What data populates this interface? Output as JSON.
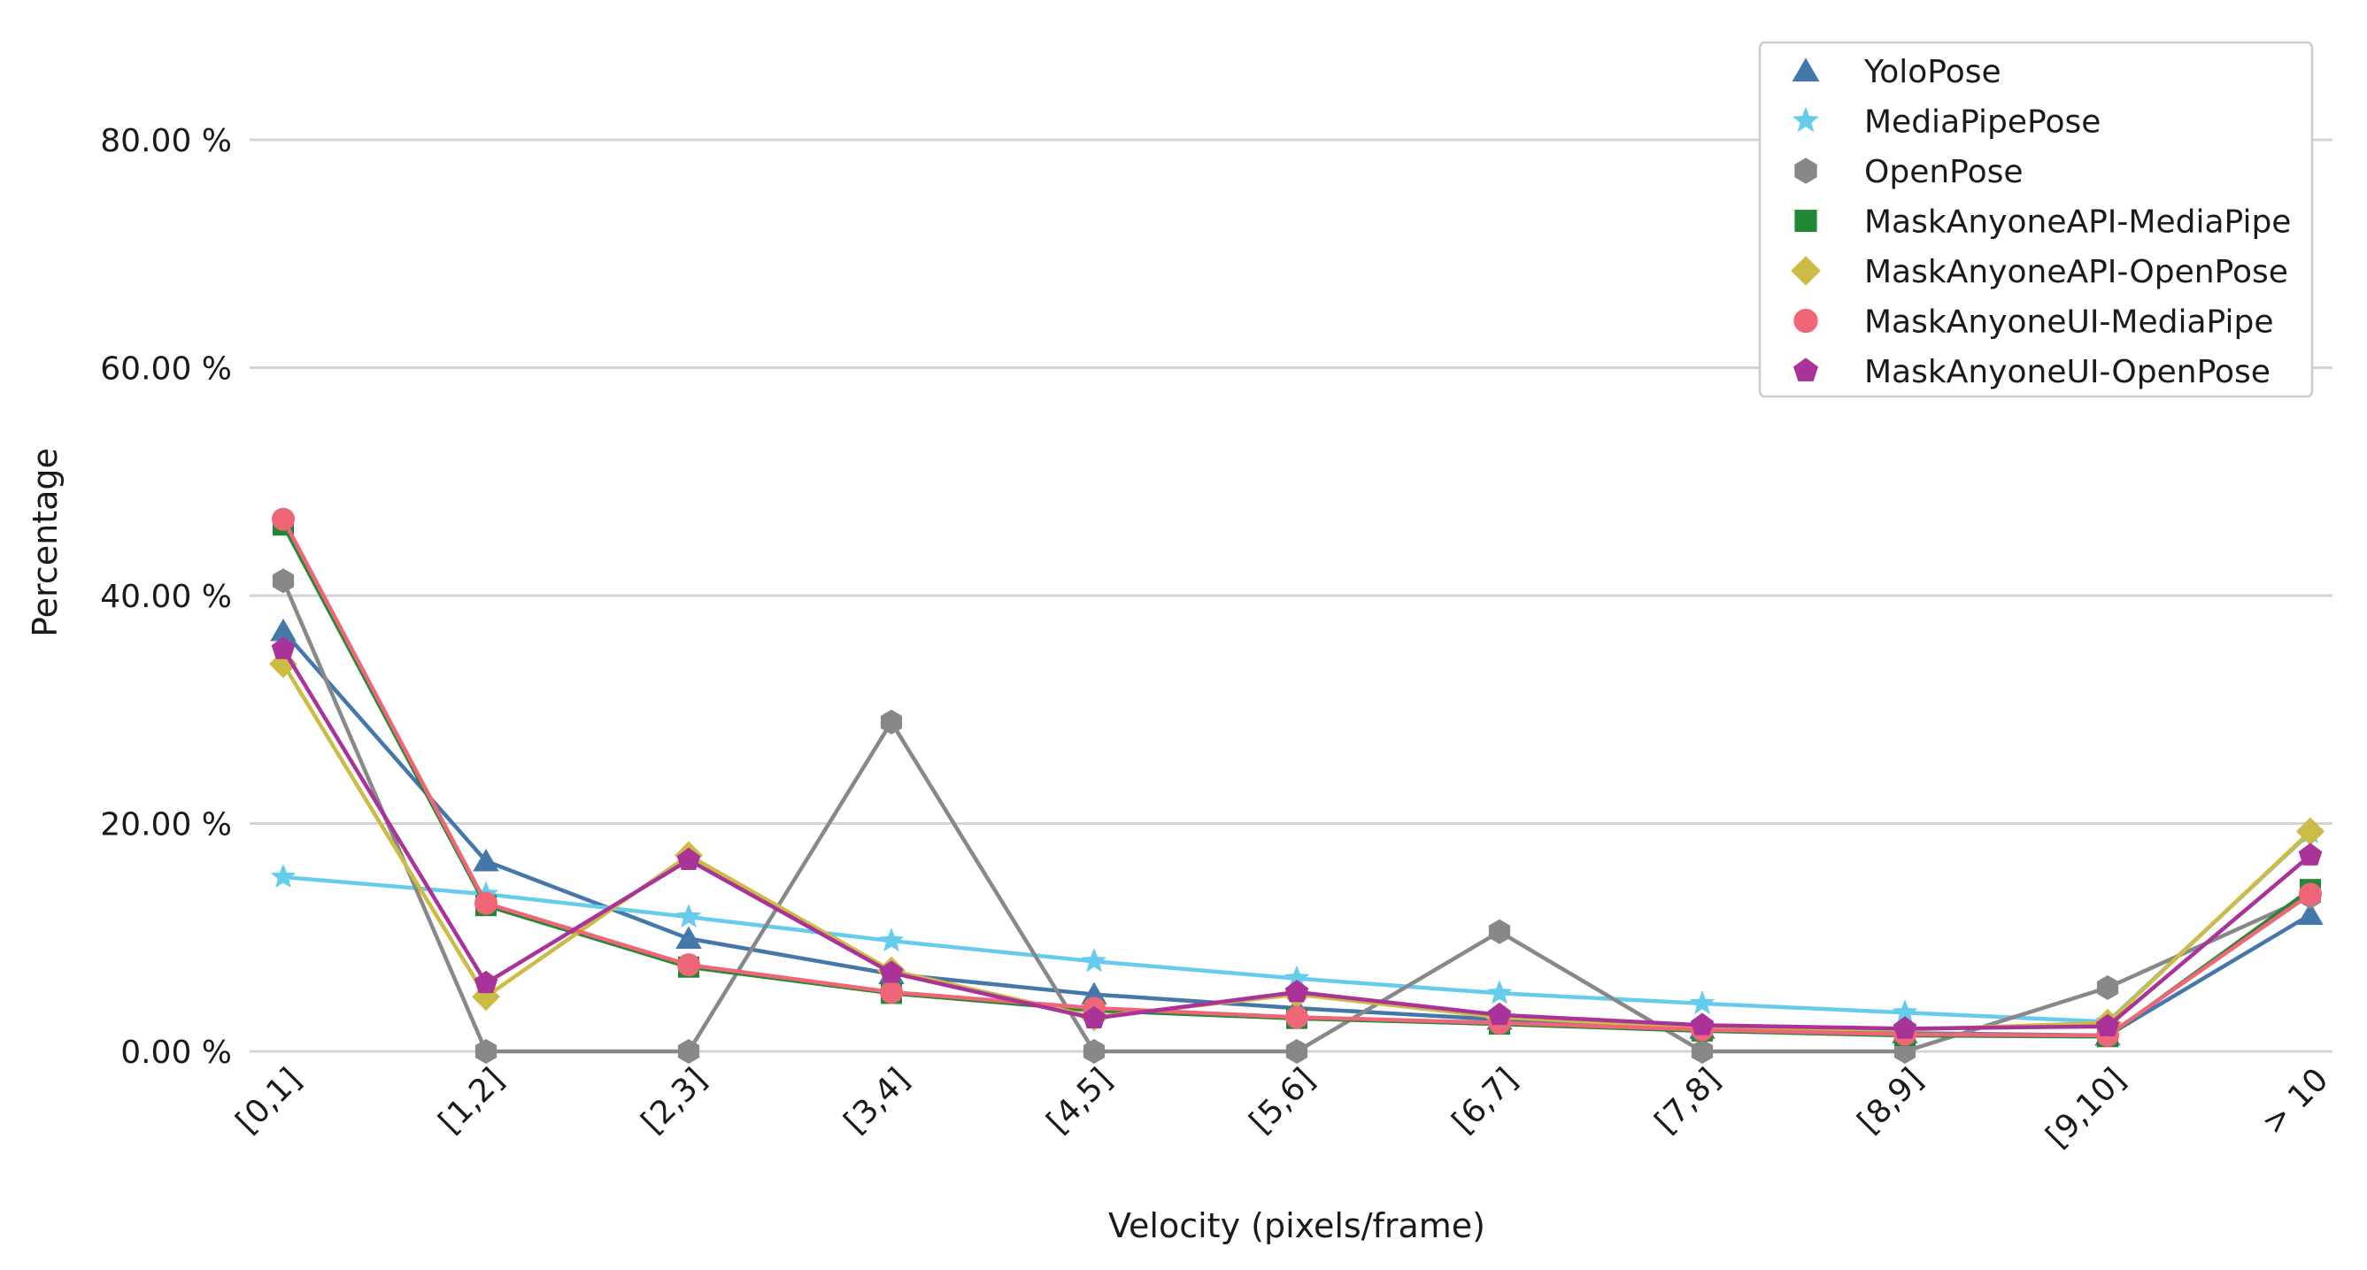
{
  "chart_data": {
    "type": "line",
    "xlabel": "Velocity (pixels/frame)",
    "ylabel": "Percentage",
    "categories": [
      "[0,1]",
      "[1,2]",
      "[2,3]",
      "[3,4]",
      "[4,5]",
      "[5,6]",
      "[6,7]",
      "[7,8]",
      "[8,9]",
      "[9,10]",
      "> 10"
    ],
    "ylim": [
      0,
      89
    ],
    "yticks": [
      0,
      20,
      40,
      60,
      80
    ],
    "ytick_labels": [
      "0.00 %",
      "20.00 %",
      "40.00 %",
      "60.00 %",
      "80.00 %"
    ],
    "grid": "horizontal",
    "legend_position": "top-right",
    "series": [
      {
        "name": "YoloPose",
        "color": "#4477aa",
        "marker": "triangle",
        "values": [
          36.9,
          16.7,
          9.9,
          6.8,
          5.0,
          3.8,
          2.8,
          2.0,
          1.6,
          1.4,
          12.0
        ]
      },
      {
        "name": "MediaPipePose",
        "color": "#66ccee",
        "marker": "star",
        "values": [
          15.3,
          13.8,
          11.8,
          9.7,
          7.9,
          6.4,
          5.1,
          4.2,
          3.4,
          2.6,
          19.2
        ]
      },
      {
        "name": "OpenPose",
        "color": "#888888",
        "marker": "hexagon",
        "values": [
          41.3,
          0.0,
          0.0,
          28.9,
          0.0,
          0.0,
          10.5,
          0.0,
          0.0,
          5.6,
          13.6
        ]
      },
      {
        "name": "MaskAnyoneAPI-MediaPipe",
        "color": "#228833",
        "marker": "square",
        "values": [
          46.2,
          12.8,
          7.4,
          5.1,
          3.6,
          2.9,
          2.4,
          1.8,
          1.4,
          1.3,
          14.2
        ]
      },
      {
        "name": "MaskAnyoneAPI-OpenPose",
        "color": "#ccbb44",
        "marker": "diamond",
        "values": [
          34.0,
          4.8,
          17.2,
          7.1,
          3.0,
          5.0,
          3.0,
          2.1,
          1.9,
          2.5,
          19.3
        ]
      },
      {
        "name": "MaskAnyoneUI-MediaPipe",
        "color": "#ee6677",
        "marker": "circle",
        "values": [
          46.7,
          13.0,
          7.6,
          5.2,
          3.8,
          3.0,
          2.5,
          1.9,
          1.5,
          1.4,
          13.8
        ]
      },
      {
        "name": "MaskAnyoneUI-OpenPose",
        "color": "#aa3399",
        "marker": "pentagon",
        "values": [
          35.3,
          6.0,
          16.8,
          6.9,
          2.9,
          5.2,
          3.2,
          2.3,
          2.0,
          2.2,
          17.2
        ]
      }
    ]
  }
}
